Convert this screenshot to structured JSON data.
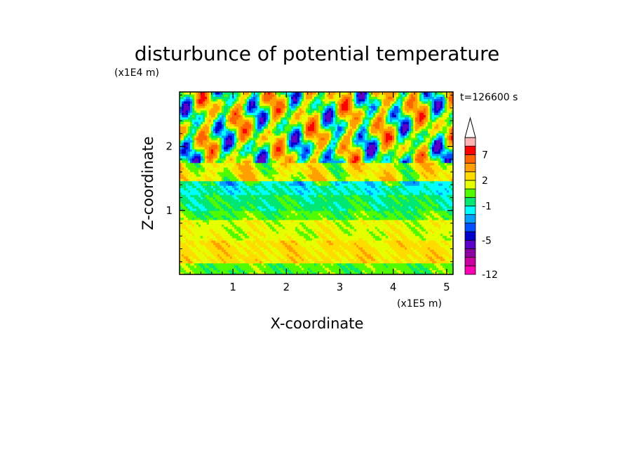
{
  "chart_data": {
    "type": "heatmap",
    "title": "disturbunce of potential temperature",
    "xlabel": "X-coordinate",
    "ylabel": "Z-coordinate",
    "x_unit": "(x1E5 m)",
    "y_unit": "(x1E4 m)",
    "time_label": "t=126600 s",
    "xlim": [
      0,
      5.12
    ],
    "ylim": [
      0,
      2.85
    ],
    "x_ticks": [
      "1",
      "2",
      "3",
      "4",
      "5"
    ],
    "x_tick_values": [
      1,
      2,
      3,
      4,
      5
    ],
    "y_ticks": [
      "1",
      "2"
    ],
    "y_tick_values": [
      1,
      2
    ],
    "colorbar": {
      "levels": [
        -12,
        -10,
        -8,
        -6,
        -5,
        -4,
        -3,
        -2,
        -1,
        0,
        1,
        2,
        3,
        5,
        7,
        9,
        11
      ],
      "labels": [
        "-12",
        "-5",
        "-1",
        "2",
        "7"
      ],
      "label_values": [
        -12,
        -5,
        -1,
        2,
        7
      ],
      "colors": [
        "#ff00b4",
        "#c800a0",
        "#8c00a0",
        "#5a00c8",
        "#0000c8",
        "#0050ff",
        "#00a0ff",
        "#00ffff",
        "#00e873",
        "#50fa00",
        "#e6ff00",
        "#ffdc00",
        "#ffa000",
        "#ff6400",
        "#ff0000",
        "#ffb4b4"
      ],
      "extend": "max"
    },
    "bands": [
      {
        "z": [
          0.0,
          0.18
        ],
        "mean": 0.4
      },
      {
        "z": [
          0.18,
          0.55
        ],
        "mean": 2.3
      },
      {
        "z": [
          0.55,
          0.85
        ],
        "mean": 1.5
      },
      {
        "z": [
          0.85,
          1.0
        ],
        "mean": 0.3
      },
      {
        "z": [
          1.0,
          1.25
        ],
        "mean": -0.4
      },
      {
        "z": [
          1.25,
          1.45
        ],
        "mean": -1.2
      },
      {
        "z": [
          1.45,
          1.75
        ],
        "mean": 1.8
      },
      {
        "z": [
          1.75,
          2.1
        ],
        "mean": 0.5
      },
      {
        "z": [
          2.1,
          2.85
        ],
        "mean": 1.0
      }
    ],
    "extrema": {
      "min_observed": -6,
      "max_observed": 9
    }
  }
}
